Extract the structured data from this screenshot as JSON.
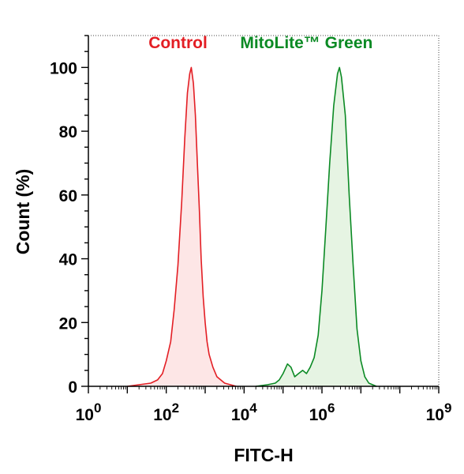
{
  "chart_data": {
    "type": "area",
    "xlabel": "FITC-H",
    "ylabel": "Count  (%)",
    "xscale": "log10",
    "xlim": [
      1,
      1000000000
    ],
    "ylim": [
      0,
      110
    ],
    "grid": false,
    "legend": "top, as inline labels above peaks",
    "x_ticks": [
      {
        "value": 1,
        "base": "10",
        "exp": "0"
      },
      {
        "value": 100,
        "base": "10",
        "exp": "2"
      },
      {
        "value": 10000,
        "base": "10",
        "exp": "4"
      },
      {
        "value": 1000000,
        "base": "10",
        "exp": "6"
      },
      {
        "value": 1000000000,
        "base": "10",
        "exp": "9"
      }
    ],
    "y_ticks": [
      0,
      20,
      40,
      60,
      80,
      100
    ],
    "series": [
      {
        "name": "Control",
        "color": "#e31e24",
        "fill": "#fde6e6",
        "label_x": 200,
        "label_y": 106,
        "points": [
          [
            10,
            0
          ],
          [
            40,
            1
          ],
          [
            60,
            2
          ],
          [
            80,
            4
          ],
          [
            100,
            8
          ],
          [
            130,
            14
          ],
          [
            160,
            24
          ],
          [
            200,
            38
          ],
          [
            250,
            58
          ],
          [
            300,
            78
          ],
          [
            350,
            92
          ],
          [
            400,
            98
          ],
          [
            440,
            100
          ],
          [
            500,
            95
          ],
          [
            560,
            85
          ],
          [
            630,
            70
          ],
          [
            710,
            55
          ],
          [
            790,
            40
          ],
          [
            890,
            28
          ],
          [
            1000,
            20
          ],
          [
            1120,
            14
          ],
          [
            1260,
            10
          ],
          [
            1580,
            6
          ],
          [
            2000,
            3
          ],
          [
            3160,
            1
          ],
          [
            6300,
            0
          ]
        ]
      },
      {
        "name": "MitoLite™ Green",
        "color": "#0b8a24",
        "fill": "#e6f4e3",
        "label_x": 400000,
        "label_y": 106,
        "points": [
          [
            20000,
            0
          ],
          [
            40000,
            0.5
          ],
          [
            63000,
            1
          ],
          [
            80000,
            2
          ],
          [
            100000,
            4
          ],
          [
            130000,
            7
          ],
          [
            160000,
            6
          ],
          [
            200000,
            3
          ],
          [
            250000,
            4
          ],
          [
            320000,
            5
          ],
          [
            400000,
            4
          ],
          [
            500000,
            6
          ],
          [
            630000,
            9
          ],
          [
            800000,
            16
          ],
          [
            1000000,
            30
          ],
          [
            1260000,
            50
          ],
          [
            1580000,
            70
          ],
          [
            2000000,
            88
          ],
          [
            2510000,
            98
          ],
          [
            2820000,
            100
          ],
          [
            3160000,
            97
          ],
          [
            3980000,
            85
          ],
          [
            5010000,
            60
          ],
          [
            6310000,
            38
          ],
          [
            7940000,
            18
          ],
          [
            10000000,
            8
          ],
          [
            12600000,
            3
          ],
          [
            16000000,
            1
          ],
          [
            25000000,
            0
          ]
        ]
      }
    ]
  }
}
